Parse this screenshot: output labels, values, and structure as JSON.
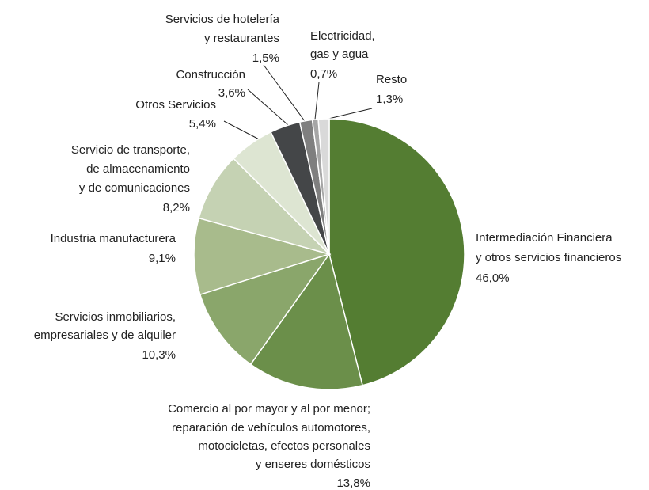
{
  "chart_data": {
    "type": "pie",
    "categories": [
      [
        "Intermediación Financiera",
        "y otros servicios financieros"
      ],
      [
        "Comercio al por mayor y al por menor;",
        "reparación de vehículos automotores,",
        "motocicletas, efectos personales",
        "y enseres domésticos"
      ],
      [
        "Servicios inmobiliarios,",
        "empresariales y de alquiler"
      ],
      [
        "Industria manufacturera"
      ],
      [
        "Servicio de transporte,",
        "de almacenamiento",
        "y de comunicaciones"
      ],
      [
        "Otros Servicios"
      ],
      [
        "Construcción"
      ],
      [
        "Servicios de hotelería",
        "y restaurantes"
      ],
      [
        "Electricidad,",
        "gas y agua"
      ],
      [
        "Resto"
      ]
    ],
    "values": [
      46.0,
      13.8,
      10.3,
      9.1,
      8.2,
      5.4,
      3.6,
      1.5,
      0.7,
      1.3
    ],
    "value_labels": [
      "46,0%",
      "13,8%",
      "10,3%",
      "9,1%",
      "8,2%",
      "5,4%",
      "3,6%",
      "1,5%",
      "0,7%",
      "1,3%"
    ],
    "colors": [
      "#547d32",
      "#6b8f4a",
      "#8aa66b",
      "#a8bb8c",
      "#c5d2b3",
      "#dde5d2",
      "#444648",
      "#7f7f7f",
      "#a6a6a6",
      "#d9d9d9"
    ]
  }
}
